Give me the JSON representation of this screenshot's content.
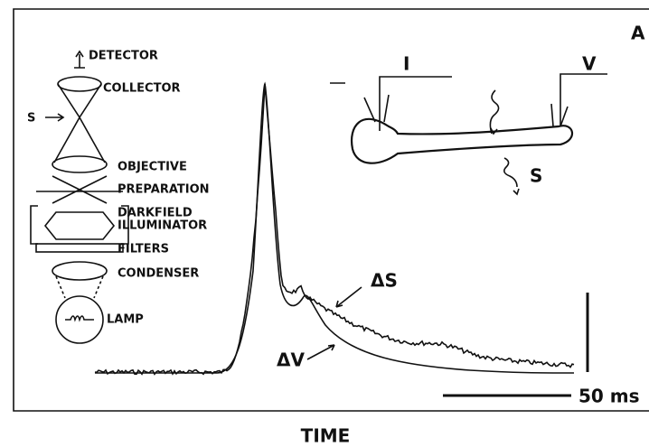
{
  "panel_label": "A",
  "optics_labels": [
    "DETECTOR",
    "COLLECTOR",
    "OBJECTIVE",
    "PREPARATION",
    "DARKFIELD",
    "ILLUMINATOR",
    "FILTERS",
    "CONDENSER",
    "LAMP"
  ],
  "incident_label": "S",
  "cell_labels": {
    "current": "I",
    "voltage": "V",
    "scatter": "S"
  },
  "trace_labels": {
    "scatter": "ΔS",
    "voltage": "ΔV"
  },
  "scale_bar": "50 ms",
  "axis_label": "TIME"
}
